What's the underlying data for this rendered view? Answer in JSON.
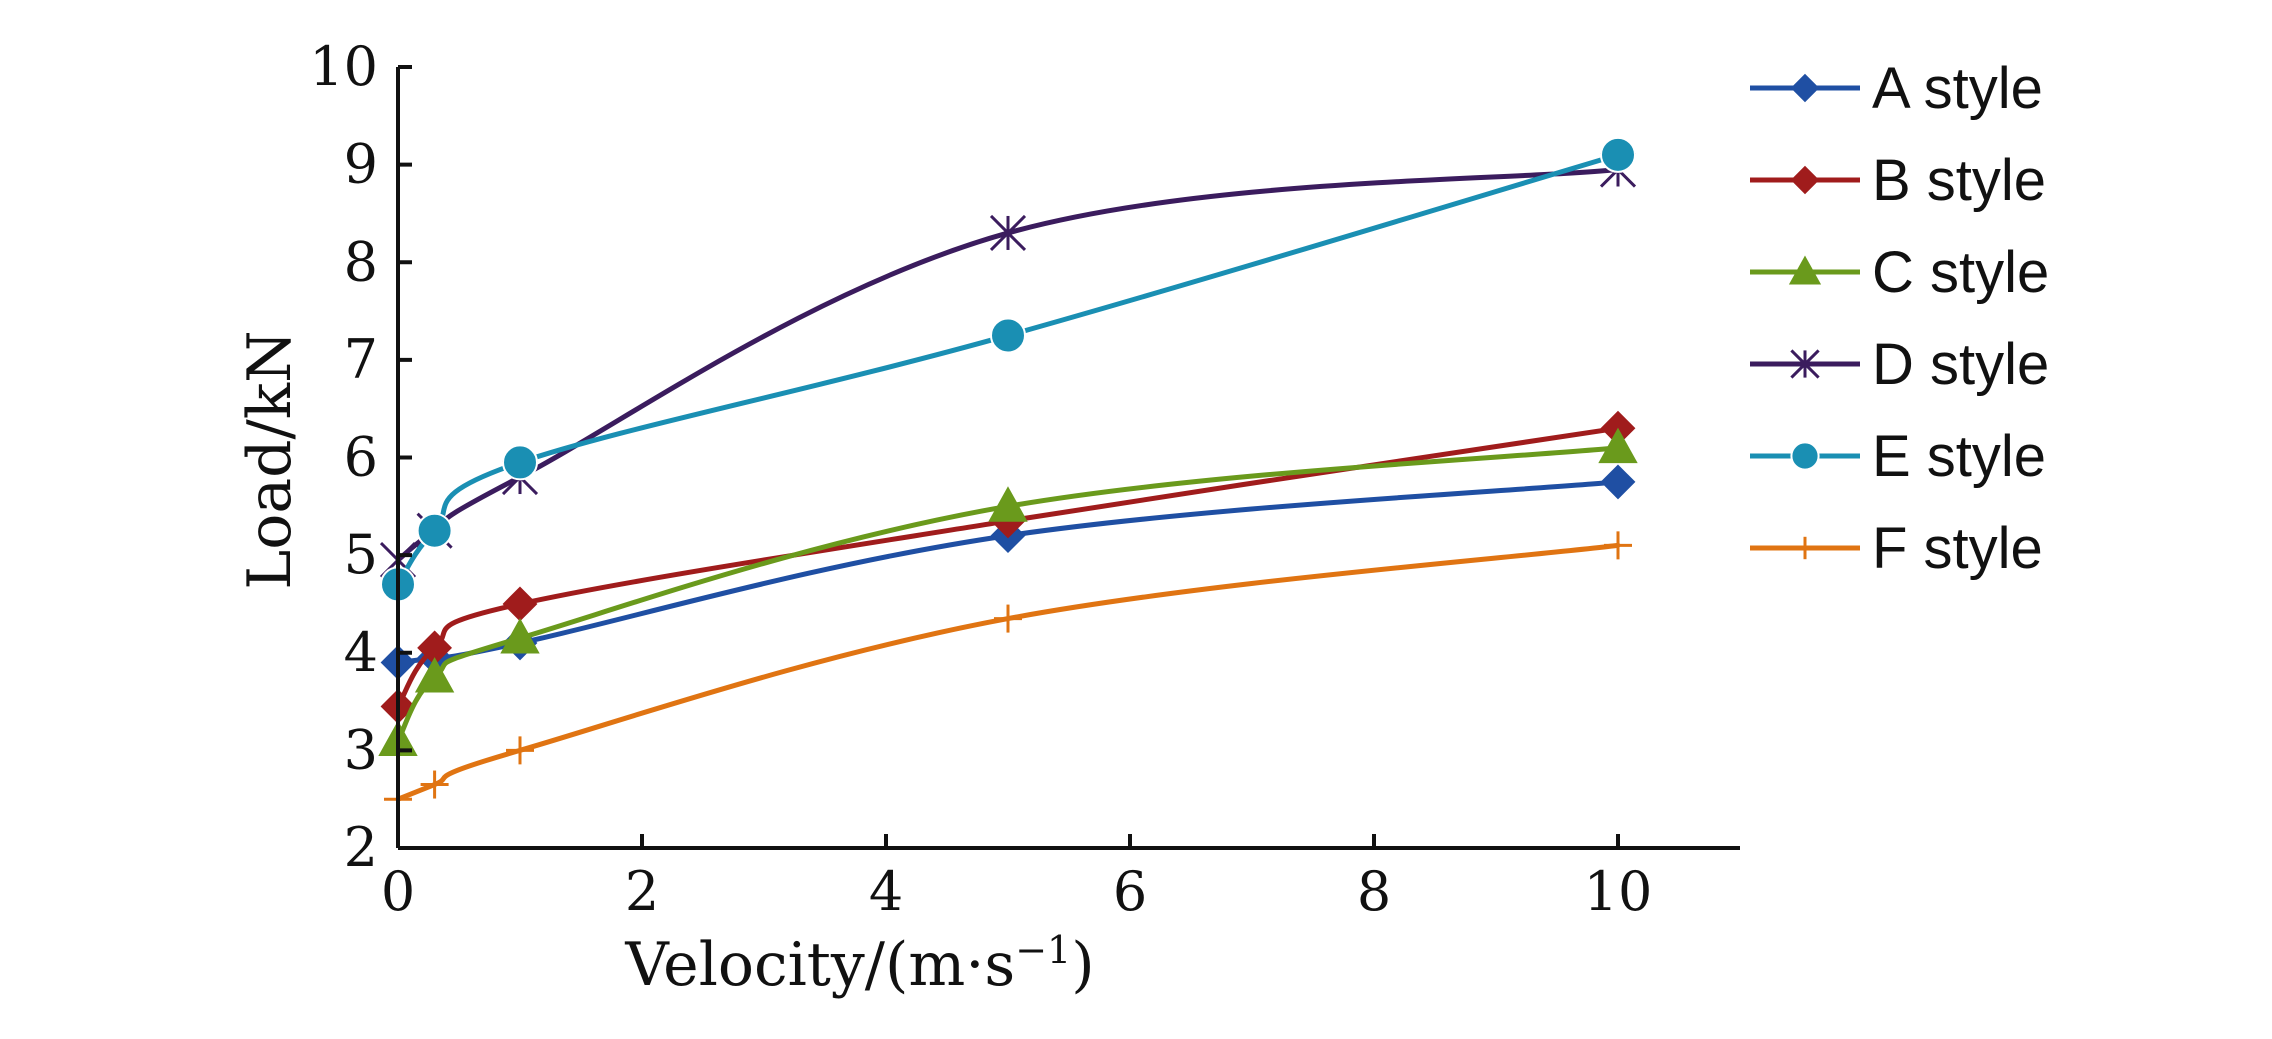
{
  "chart_data": {
    "type": "line",
    "title": "",
    "xlabel": "Velocity/(m·s",
    "xlabel_sup": "−1",
    "xlabel_close": ")",
    "ylabel": "Load/kN",
    "xlim": [
      0,
      11
    ],
    "ylim": [
      2,
      10
    ],
    "x_ticks": [
      "0",
      "2",
      "4",
      "6",
      "8",
      "10"
    ],
    "y_ticks": [
      "2",
      "3",
      "4",
      "5",
      "6",
      "7",
      "8",
      "9",
      "10"
    ],
    "x_tick_values": [
      0,
      2,
      4,
      6,
      8,
      10
    ],
    "y_tick_values": [
      2,
      3,
      4,
      5,
      6,
      7,
      8,
      9,
      10
    ],
    "grid": false,
    "legend_position": "right",
    "series": [
      {
        "name": "A style",
        "color": "#1f4fa3",
        "marker": "diamond",
        "x": [
          0,
          0.3,
          1,
          5,
          10
        ],
        "y": [
          3.9,
          3.95,
          4.1,
          5.2,
          5.75
        ]
      },
      {
        "name": "B style",
        "color": "#a01c1c",
        "marker": "diamond",
        "x": [
          0,
          0.3,
          1,
          5,
          10
        ],
        "y": [
          3.45,
          4.05,
          4.5,
          5.35,
          6.3
        ]
      },
      {
        "name": "C style",
        "color": "#6a9a1c",
        "marker": "triangle",
        "x": [
          0,
          0.3,
          1,
          5,
          10
        ],
        "y": [
          3.1,
          3.75,
          4.15,
          5.5,
          6.1
        ]
      },
      {
        "name": "D style",
        "color": "#3b1c5e",
        "marker": "asterisk",
        "x": [
          0,
          0.3,
          1,
          5,
          10
        ],
        "y": [
          4.95,
          5.25,
          5.8,
          8.3,
          8.95
        ]
      },
      {
        "name": "E style",
        "color": "#1a8fb3",
        "marker": "circle",
        "x": [
          0,
          0.3,
          1,
          5,
          10
        ],
        "y": [
          4.7,
          5.25,
          5.95,
          7.25,
          9.1
        ]
      },
      {
        "name": "F style",
        "color": "#e07412",
        "marker": "plus",
        "x": [
          0,
          0.3,
          1,
          5,
          10
        ],
        "y": [
          2.5,
          2.65,
          3.0,
          4.35,
          5.1
        ]
      }
    ]
  }
}
